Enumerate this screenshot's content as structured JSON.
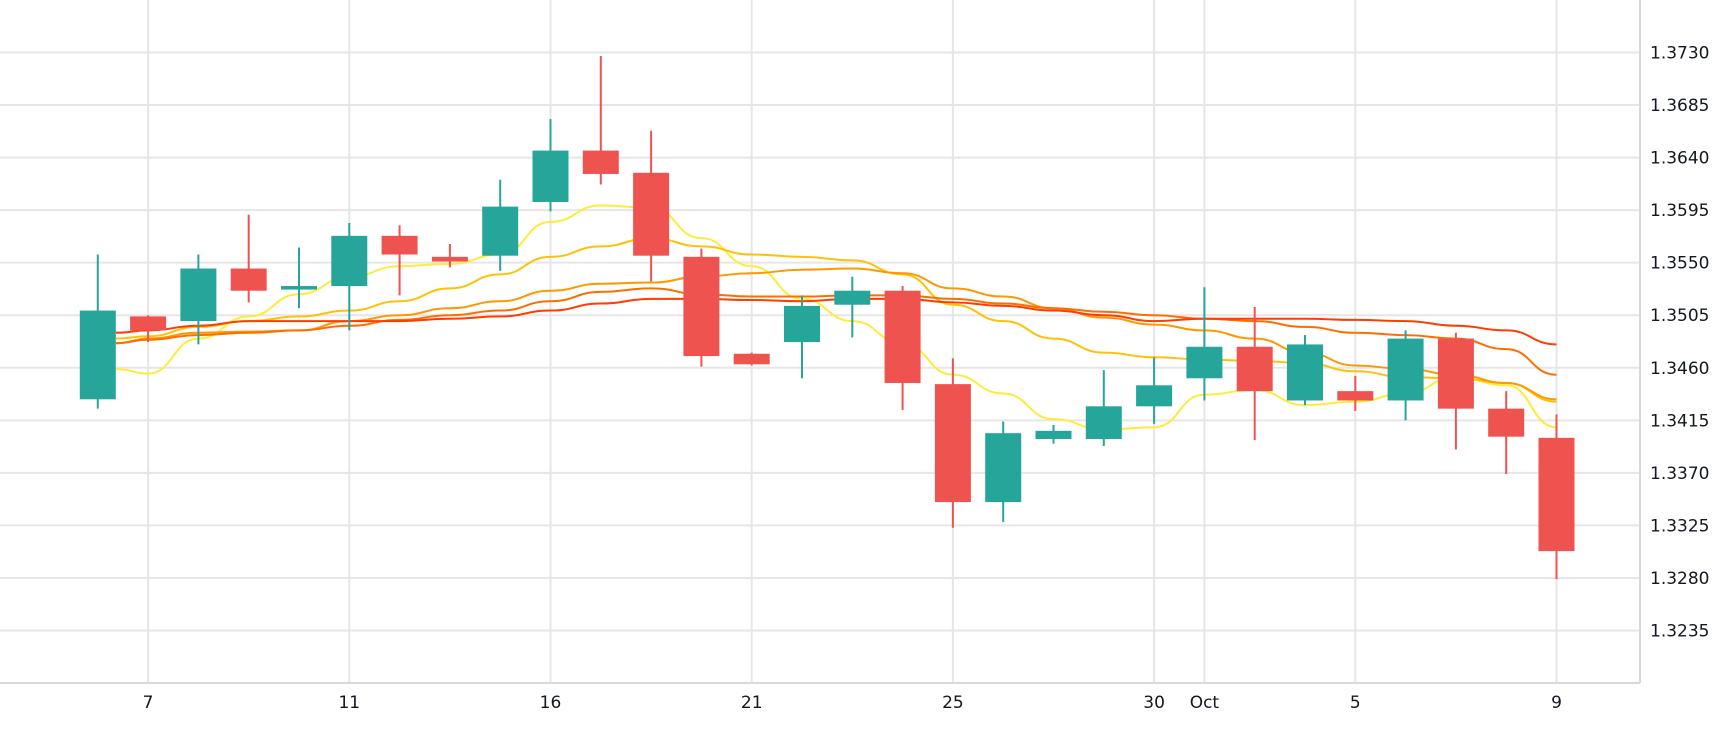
{
  "chart_data": {
    "type": "candlestick",
    "title": "",
    "xlabel": "",
    "ylabel": "",
    "ylim": [
      1.319,
      1.3775
    ],
    "grid": true,
    "y_ticks": [
      "1.3730",
      "1.3685",
      "1.3640",
      "1.3595",
      "1.3550",
      "1.3505",
      "1.3460",
      "1.3415",
      "1.3370",
      "1.3325",
      "1.3280",
      "1.3235"
    ],
    "x_ticks": [
      {
        "label": "7",
        "index": 1
      },
      {
        "label": "11",
        "index": 5
      },
      {
        "label": "16",
        "index": 9
      },
      {
        "label": "21",
        "index": 13
      },
      {
        "label": "25",
        "index": 17
      },
      {
        "label": "30",
        "index": 21
      },
      {
        "label": "Oct",
        "index": 22
      },
      {
        "label": "5",
        "index": 25
      },
      {
        "label": "9",
        "index": 29
      }
    ],
    "colors": {
      "up": "#26a69a",
      "down": "#ef5350",
      "grid": "#e6e6e6",
      "axis": "#d9d9d9"
    },
    "candles": [
      {
        "o": 1.3433,
        "h": 1.3557,
        "l": 1.3425,
        "c": 1.3509
      },
      {
        "o": 1.3504,
        "h": 1.3505,
        "l": 1.3482,
        "c": 1.3492
      },
      {
        "o": 1.35,
        "h": 1.3557,
        "l": 1.348,
        "c": 1.3545
      },
      {
        "o": 1.3545,
        "h": 1.3591,
        "l": 1.3516,
        "c": 1.3526
      },
      {
        "o": 1.3527,
        "h": 1.3563,
        "l": 1.3511,
        "c": 1.353
      },
      {
        "o": 1.353,
        "h": 1.3584,
        "l": 1.3492,
        "c": 1.3573
      },
      {
        "o": 1.3573,
        "h": 1.3582,
        "l": 1.3522,
        "c": 1.3557
      },
      {
        "o": 1.3555,
        "h": 1.3566,
        "l": 1.3546,
        "c": 1.3551
      },
      {
        "o": 1.3556,
        "h": 1.3621,
        "l": 1.3543,
        "c": 1.3598
      },
      {
        "o": 1.3602,
        "h": 1.3673,
        "l": 1.3594,
        "c": 1.3646
      },
      {
        "o": 1.3646,
        "h": 1.3727,
        "l": 1.3617,
        "c": 1.3626
      },
      {
        "o": 1.3627,
        "h": 1.3663,
        "l": 1.3534,
        "c": 1.3556
      },
      {
        "o": 1.3555,
        "h": 1.3562,
        "l": 1.3461,
        "c": 1.347
      },
      {
        "o": 1.3472,
        "h": 1.3473,
        "l": 1.3462,
        "c": 1.3463
      },
      {
        "o": 1.3482,
        "h": 1.3522,
        "l": 1.3451,
        "c": 1.3513
      },
      {
        "o": 1.3514,
        "h": 1.3538,
        "l": 1.3486,
        "c": 1.3526
      },
      {
        "o": 1.3526,
        "h": 1.353,
        "l": 1.3424,
        "c": 1.3447
      },
      {
        "o": 1.3446,
        "h": 1.3468,
        "l": 1.3323,
        "c": 1.3345
      },
      {
        "o": 1.3345,
        "h": 1.3414,
        "l": 1.3328,
        "c": 1.3404
      },
      {
        "o": 1.3399,
        "h": 1.3411,
        "l": 1.3395,
        "c": 1.3406
      },
      {
        "o": 1.3399,
        "h": 1.3458,
        "l": 1.3393,
        "c": 1.3427
      },
      {
        "o": 1.3427,
        "h": 1.3469,
        "l": 1.3412,
        "c": 1.3445
      },
      {
        "o": 1.3451,
        "h": 1.3529,
        "l": 1.3432,
        "c": 1.3478
      },
      {
        "o": 1.3478,
        "h": 1.3512,
        "l": 1.3398,
        "c": 1.344
      },
      {
        "o": 1.3432,
        "h": 1.3488,
        "l": 1.3428,
        "c": 1.348
      },
      {
        "o": 1.344,
        "h": 1.3453,
        "l": 1.3423,
        "c": 1.3432
      },
      {
        "o": 1.3432,
        "h": 1.3492,
        "l": 1.3415,
        "c": 1.3485
      },
      {
        "o": 1.3485,
        "h": 1.349,
        "l": 1.339,
        "c": 1.3425
      },
      {
        "o": 1.3425,
        "h": 1.344,
        "l": 1.3369,
        "c": 1.3401
      },
      {
        "o": 1.34,
        "h": 1.342,
        "l": 1.3279,
        "c": 1.3303
      }
    ],
    "series": [
      {
        "color": "#ffeb3b",
        "values": [
          1.3459,
          1.3455,
          1.3485,
          1.3504,
          1.3523,
          1.3538,
          1.3547,
          1.3549,
          1.3557,
          1.3585,
          1.3599,
          1.3597,
          1.3571,
          1.3547,
          1.3519,
          1.35,
          1.3481,
          1.3454,
          1.3438,
          1.3416,
          1.3407,
          1.3409,
          1.3437,
          1.3441,
          1.3428,
          1.3431,
          1.3438,
          1.3452,
          1.3445,
          1.3409
        ]
      },
      {
        "color": "#ffc107",
        "values": [
          1.3485,
          1.3487,
          1.3495,
          1.35,
          1.3504,
          1.3509,
          1.3517,
          1.3528,
          1.354,
          1.3555,
          1.3564,
          1.3571,
          1.3564,
          1.3557,
          1.3555,
          1.3552,
          1.354,
          1.3514,
          1.35,
          1.3485,
          1.3473,
          1.3469,
          1.3467,
          1.3466,
          1.3464,
          1.3457,
          1.3452,
          1.3451,
          1.3447,
          1.3431
        ]
      },
      {
        "color": "#ff9800",
        "values": [
          1.3481,
          1.3485,
          1.349,
          1.3491,
          1.3492,
          1.35,
          1.3505,
          1.3511,
          1.3517,
          1.3526,
          1.3532,
          1.3533,
          1.3538,
          1.3541,
          1.3544,
          1.3545,
          1.3541,
          1.3528,
          1.3521,
          1.3511,
          1.3503,
          1.3497,
          1.3492,
          1.3485,
          1.3473,
          1.3462,
          1.3459,
          1.3454,
          1.3447,
          1.3433
        ]
      },
      {
        "color": "#ff6d00",
        "values": [
          1.3481,
          1.3484,
          1.3488,
          1.349,
          1.3492,
          1.3496,
          1.3501,
          1.3505,
          1.3509,
          1.3517,
          1.3525,
          1.3528,
          1.3523,
          1.3521,
          1.3521,
          1.3522,
          1.3522,
          1.3519,
          1.3515,
          1.3511,
          1.3508,
          1.3505,
          1.3502,
          1.35,
          1.3495,
          1.349,
          1.3488,
          1.3485,
          1.3476,
          1.3454
        ]
      },
      {
        "color": "#ff3d00",
        "values": [
          1.349,
          1.3492,
          1.3496,
          1.35,
          1.35,
          1.35,
          1.35,
          1.3502,
          1.3504,
          1.3509,
          1.3515,
          1.3519,
          1.3519,
          1.3518,
          1.3517,
          1.3519,
          1.3519,
          1.3516,
          1.3513,
          1.3509,
          1.3505,
          1.35,
          1.3502,
          1.3502,
          1.3502,
          1.3501,
          1.35,
          1.3496,
          1.3492,
          1.348
        ]
      }
    ]
  }
}
